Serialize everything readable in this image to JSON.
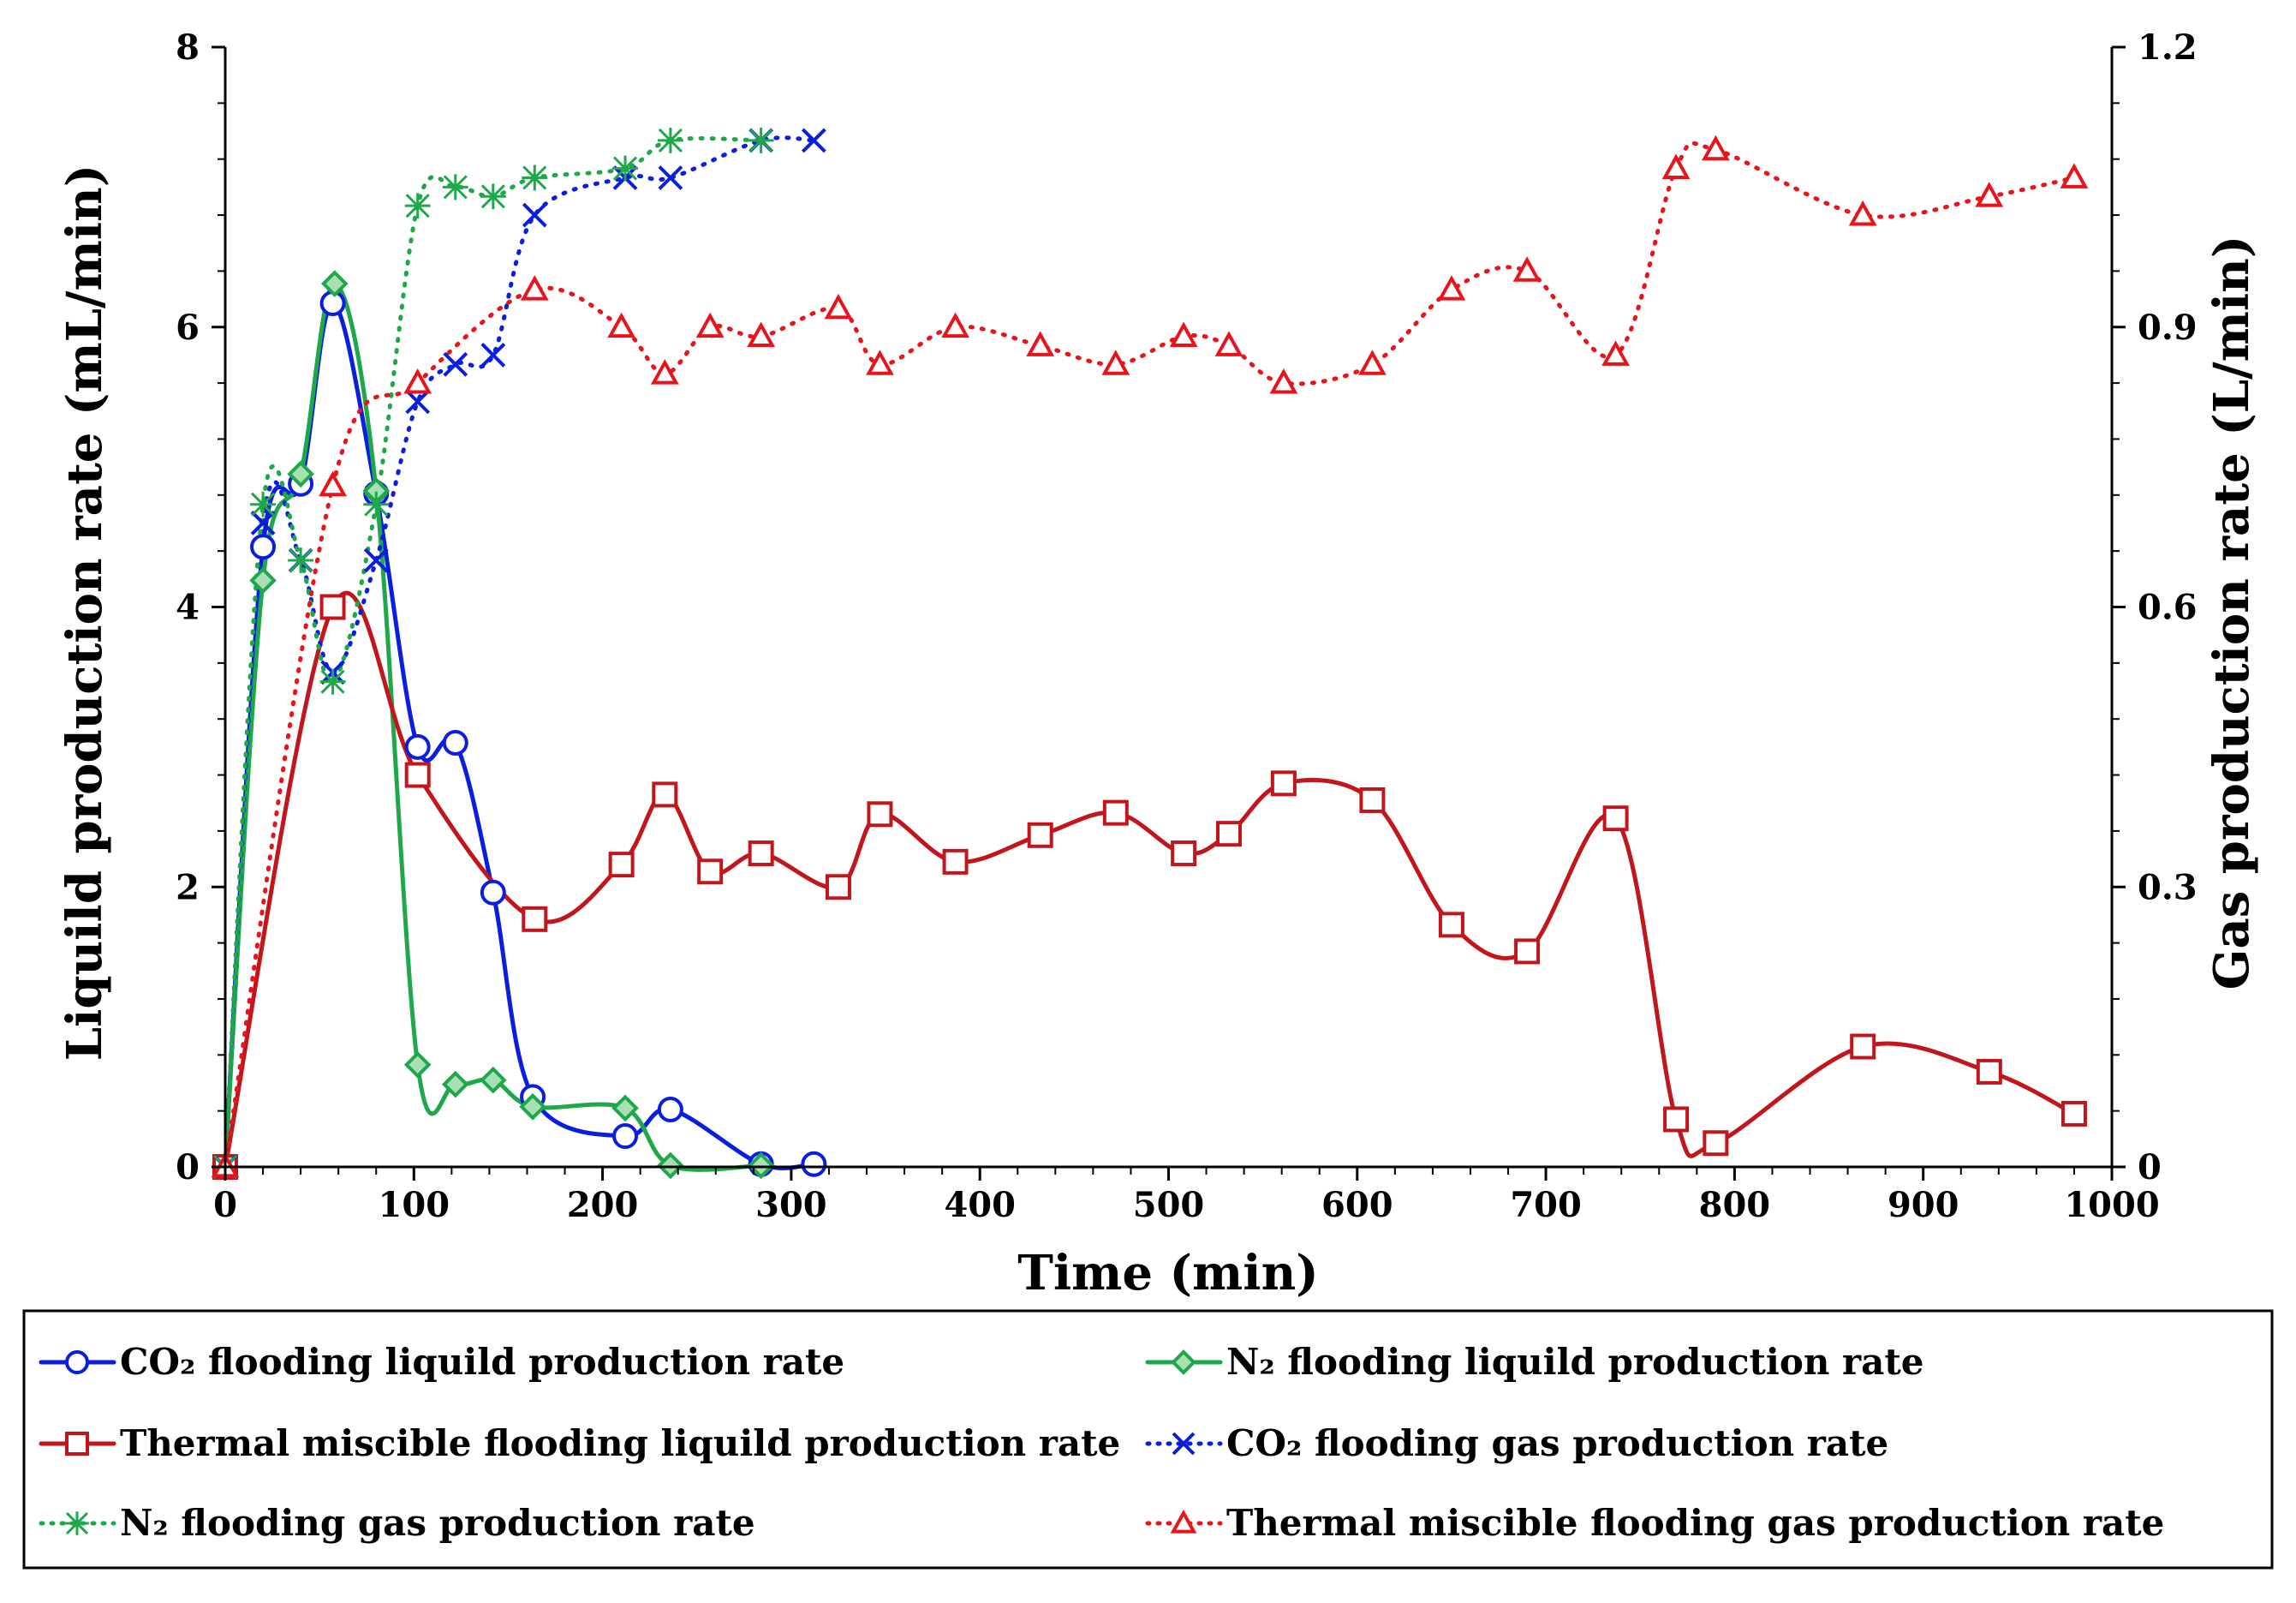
{
  "chart_data": {
    "type": "line",
    "title": "",
    "xlabel": "Time (min)",
    "ylabel_left": "Liquild production rate (mL/min)",
    "ylabel_right": "Gas production rate (L/min)",
    "xlim": [
      0,
      1000
    ],
    "ylim_left": [
      0,
      8
    ],
    "ylim_right": [
      0,
      1.2
    ],
    "x_ticks": [
      "0",
      "100",
      "200",
      "300",
      "400",
      "500",
      "600",
      "700",
      "800",
      "900",
      "1000"
    ],
    "y_left_ticks": [
      "0",
      "2",
      "4",
      "6",
      "8"
    ],
    "y_right_ticks": [
      "0",
      "0.3",
      "0.6",
      "0.9",
      "1.2"
    ],
    "grid": false,
    "legend_position": "bottom",
    "series": [
      {
        "name": "CO₂ flooding liquild production rate",
        "axis": "left",
        "color": "#0a1ee0",
        "line": "solid",
        "marker": "circle",
        "x": [
          0,
          20,
          40,
          57,
          80,
          102,
          122,
          142,
          163,
          212,
          236,
          284,
          312
        ],
        "y": [
          0,
          4.43,
          4.88,
          6.17,
          4.81,
          3.0,
          3.03,
          1.96,
          0.5,
          0.22,
          0.41,
          0.02,
          0.02
        ]
      },
      {
        "name": "N₂ flooding liquild production rate",
        "axis": "left",
        "color": "#1ea84a",
        "line": "solid",
        "marker": "diamond",
        "x": [
          0,
          20,
          40,
          58,
          80,
          102,
          122,
          142,
          163,
          212,
          236,
          284
        ],
        "y": [
          0,
          4.19,
          4.95,
          6.31,
          4.83,
          0.73,
          0.59,
          0.62,
          0.43,
          0.42,
          0.01,
          0.01
        ]
      },
      {
        "name": "Thermal miscible flooding liquild production rate",
        "axis": "left",
        "color": "#c0161c",
        "line": "solid",
        "marker": "square",
        "x": [
          0,
          57,
          102,
          164,
          210,
          233,
          257,
          284,
          325,
          347,
          387,
          432,
          472,
          508,
          532,
          561,
          608,
          650,
          690,
          737,
          769,
          790,
          868,
          935,
          980
        ],
        "y": [
          0,
          4.0,
          2.8,
          1.77,
          2.16,
          2.66,
          2.11,
          2.24,
          2.0,
          2.52,
          2.18,
          2.37,
          2.53,
          2.24,
          2.38,
          2.74,
          2.62,
          1.73,
          1.54,
          2.49,
          0.34,
          0.17,
          0.86,
          0.68,
          0.38
        ]
      },
      {
        "name": "CO₂ flooding gas production rate",
        "axis": "right",
        "color": "#0a1ee0",
        "line": "dotted",
        "marker": "x",
        "x": [
          0,
          20,
          40,
          57,
          80,
          102,
          122,
          142,
          164,
          212,
          236,
          284,
          312
        ],
        "y": [
          0,
          0.69,
          0.65,
          0.53,
          0.65,
          0.82,
          0.86,
          0.87,
          1.02,
          1.06,
          1.06,
          1.1,
          1.1
        ]
      },
      {
        "name": "N₂ flooding gas production rate",
        "axis": "right",
        "color": "#1ea84a",
        "line": "dotted",
        "marker": "asterisk",
        "x": [
          0,
          20,
          40,
          57,
          80,
          102,
          122,
          142,
          164,
          212,
          236,
          284
        ],
        "y": [
          0,
          0.71,
          0.65,
          0.52,
          0.71,
          1.03,
          1.05,
          1.04,
          1.06,
          1.07,
          1.1,
          1.1
        ]
      },
      {
        "name": "Thermal miscible flooding gas production rate",
        "axis": "right",
        "color": "#e8141c",
        "line": "dotted",
        "marker": "triangle",
        "x": [
          0,
          57,
          102,
          164,
          210,
          233,
          257,
          284,
          325,
          347,
          387,
          432,
          472,
          508,
          532,
          561,
          608,
          650,
          690,
          737,
          769,
          790,
          868,
          935,
          980
        ],
        "y": [
          0,
          0.73,
          0.84,
          0.94,
          0.9,
          0.85,
          0.9,
          0.89,
          0.92,
          0.86,
          0.9,
          0.88,
          0.86,
          0.89,
          0.88,
          0.84,
          0.86,
          0.94,
          0.96,
          0.87,
          1.07,
          1.09,
          1.02,
          1.04,
          1.06
        ]
      }
    ]
  }
}
